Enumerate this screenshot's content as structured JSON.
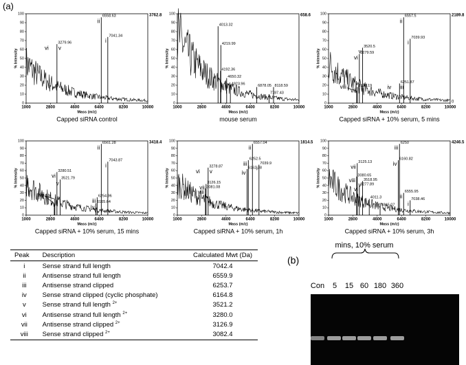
{
  "panel_a": {
    "label": "(a)",
    "axes": {
      "xlabel": "Mass (m/z)",
      "ylabel": "% Intensity",
      "xlim": [
        1000,
        10000
      ],
      "xticks": [
        1000,
        2800,
        4600,
        6400,
        8200,
        10000
      ],
      "ylim": [
        0,
        100
      ],
      "yticks": [
        0,
        10,
        20,
        30,
        40,
        50,
        60,
        70,
        80,
        90,
        100
      ]
    },
    "spectra": [
      {
        "title": "Capped siRNA control",
        "max_intensity": "3762.8",
        "peaks": [
          {
            "mass": 3279.96,
            "intensity": 66,
            "tags": [
              "vi",
              "v"
            ]
          },
          {
            "mass": 6558.63,
            "intensity": 96,
            "tags": [
              "ii"
            ]
          },
          {
            "mass": 7041.34,
            "intensity": 74,
            "tags": [
              "i"
            ]
          }
        ],
        "marked": []
      },
      {
        "title": "mouse serum",
        "max_intensity": "658.6",
        "peaks": [
          {
            "mass": 4013.32,
            "intensity": 86
          },
          {
            "mass": 4219.99,
            "intensity": 65
          },
          {
            "mass": 4192.36,
            "intensity": 36
          },
          {
            "mass": 4650.32,
            "intensity": 28
          },
          {
            "mass": 4923.96,
            "intensity": 20
          },
          {
            "mass": 6878.05,
            "intensity": 18
          },
          {
            "mass": 8118.59,
            "intensity": 18
          },
          {
            "mass": 7787.43,
            "intensity": 10
          }
        ],
        "marked": []
      },
      {
        "title": "Capped siRNA + 10% serum, 5 mins",
        "max_intensity": "2189.8",
        "right_min": 0,
        "peaks": [
          {
            "mass": 6557.5,
            "intensity": 96,
            "tags": [
              "ii"
            ]
          },
          {
            "mass": 7039.93,
            "intensity": 72,
            "tags": [
              "i"
            ]
          },
          {
            "mass": 3520.5,
            "intensity": 62,
            "tags": [
              "v"
            ]
          },
          {
            "mass": 3279.59,
            "intensity": 55,
            "tags": [
              "vi"
            ]
          },
          {
            "mass": 3126.19,
            "intensity": 18,
            "tags": [
              "vii"
            ]
          },
          {
            "mass": 6251.87,
            "intensity": 22,
            "tags": [
              "iv",
              "iii"
            ]
          }
        ],
        "marked": [
          {
            "tag": "viii",
            "mass": 3082,
            "intensity": 14
          }
        ]
      },
      {
        "title": "Capped siRNA + 10% serum, 15 mins",
        "max_intensity": "3418.4",
        "peaks": [
          {
            "mass": 6561.28,
            "intensity": 96,
            "tags": [
              "ii"
            ]
          },
          {
            "mass": 7043.87,
            "intensity": 72,
            "tags": [
              "i"
            ]
          },
          {
            "mass": 3280.51,
            "intensity": 58,
            "tags": [
              "vi"
            ]
          },
          {
            "mass": 3521.79,
            "intensity": 48,
            "tags": [
              "v"
            ]
          },
          {
            "mass": 6254.96,
            "intensity": 24,
            "tags": [
              "iii"
            ]
          },
          {
            "mass": 6165.64,
            "intensity": 16,
            "tags": [
              "iv"
            ]
          }
        ],
        "marked": [
          {
            "tag": "vii",
            "mass": 3126,
            "intensity": 22
          },
          {
            "tag": "viii",
            "mass": 3082,
            "intensity": 16
          }
        ]
      },
      {
        "title": "Capped siRNA + 10% serum, 1h",
        "max_intensity": "1814.5",
        "peaks": [
          {
            "mass": 6557.04,
            "intensity": 96,
            "tags": [
              "ii"
            ]
          },
          {
            "mass": 6252.5,
            "intensity": 74,
            "tags": [
              "iii"
            ]
          },
          {
            "mass": 6162.38,
            "intensity": 62,
            "tags": [
              "iv"
            ]
          },
          {
            "mass": 7039.9,
            "intensity": 68,
            "tags": [
              "i"
            ]
          },
          {
            "mass": 3278.87,
            "intensity": 64,
            "tags": [
              "vi",
              "v"
            ]
          },
          {
            "mass": 3126.15,
            "intensity": 42,
            "tags": [
              "vii"
            ]
          },
          {
            "mass": 3081.08,
            "intensity": 36,
            "tags": [
              "viii"
            ]
          }
        ],
        "marked": []
      },
      {
        "title": "Capped siRNA + 10% serum, 3h",
        "max_intensity": "4246.5",
        "peaks": [
          {
            "mass": 6250.0,
            "intensity": 96,
            "tags": [
              "iii"
            ]
          },
          {
            "mass": 6160.82,
            "intensity": 74,
            "tags": [
              "iv"
            ]
          },
          {
            "mass": 6555.95,
            "intensity": 30,
            "tags": [
              "ii"
            ]
          },
          {
            "mass": 7038.46,
            "intensity": 20,
            "tags": [
              "i"
            ]
          },
          {
            "mass": 3125.13,
            "intensity": 70,
            "tags": [
              "vii"
            ]
          },
          {
            "mass": 3080.65,
            "intensity": 52,
            "tags": [
              "viii"
            ]
          },
          {
            "mass": 3518.95,
            "intensity": 46,
            "tags": [
              "v"
            ]
          },
          {
            "mass": 3277.89,
            "intensity": 40,
            "tags": [
              "vi"
            ]
          },
          {
            "mass": 4011.3,
            "intensity": 22
          },
          {
            "mass": 4815.07,
            "intensity": 12
          }
        ],
        "marked": []
      }
    ],
    "table": {
      "header": [
        "Peak",
        "Description",
        "Calculated Mwt (Da)"
      ],
      "rows": [
        {
          "peak": "i",
          "description": "Sense strand full length",
          "mwt": "7042.4"
        },
        {
          "peak": "ii",
          "description": "Antisense strand full length",
          "mwt": "6559.9"
        },
        {
          "peak": "iii",
          "description": "Antisense strand clipped",
          "mwt": "6253.7"
        },
        {
          "peak": "iv",
          "description": "Sense strand clipped (cyclic phosphate)",
          "mwt": "6164.8"
        },
        {
          "peak": "v",
          "description": "Sense strand full length",
          "charge": "2+",
          "mwt": "3521.2"
        },
        {
          "peak": "vi",
          "description": "Antisense strand full length",
          "charge": "2+",
          "mwt": "3280.0"
        },
        {
          "peak": "vii",
          "description": "Antisense strand clipped",
          "charge": "2+",
          "mwt": "3126.9"
        },
        {
          "peak": "viii",
          "description": "Sense strand clipped",
          "charge": "2+",
          "mwt": "3082.4"
        }
      ]
    }
  },
  "panel_b": {
    "label": "(b)",
    "condition": "mins, 10% serum",
    "lanes": [
      "Con",
      "5",
      "15",
      "60",
      "180",
      "360"
    ]
  }
}
